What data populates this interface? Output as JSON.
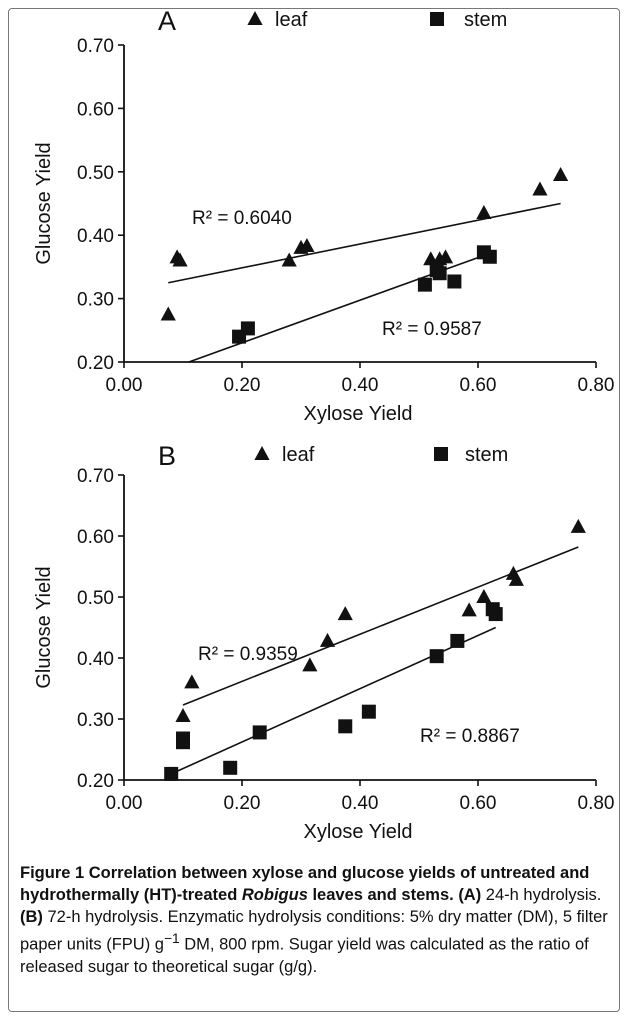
{
  "charts": [
    {
      "panel": "A",
      "chart_data": {
        "type": "scatter",
        "xlabel": "Xylose Yield",
        "ylabel": "Glucose Yield",
        "xlim": [
          0.0,
          0.8
        ],
        "ylim": [
          0.2,
          0.7
        ],
        "xticks": [
          "0.00",
          "0.20",
          "0.40",
          "0.60",
          "0.80"
        ],
        "yticks": [
          "0.20",
          "0.30",
          "0.40",
          "0.50",
          "0.60",
          "0.70"
        ],
        "grid": false,
        "legend_position": "top",
        "series": [
          {
            "name": "leaf",
            "marker": "triangle",
            "color": "#111111",
            "points": [
              [
                0.075,
                0.275
              ],
              [
                0.09,
                0.365
              ],
              [
                0.095,
                0.36
              ],
              [
                0.28,
                0.36
              ],
              [
                0.3,
                0.38
              ],
              [
                0.31,
                0.383
              ],
              [
                0.52,
                0.362
              ],
              [
                0.535,
                0.362
              ],
              [
                0.545,
                0.365
              ],
              [
                0.61,
                0.435
              ],
              [
                0.705,
                0.472
              ],
              [
                0.74,
                0.495
              ]
            ],
            "fit": {
              "x": [
                0.075,
                0.74
              ],
              "y": [
                0.325,
                0.45
              ],
              "r2_label": "R² = 0.6040"
            }
          },
          {
            "name": "stem",
            "marker": "square",
            "color": "#111111",
            "points": [
              [
                0.195,
                0.24
              ],
              [
                0.21,
                0.253
              ],
              [
                0.51,
                0.322
              ],
              [
                0.53,
                0.345
              ],
              [
                0.535,
                0.34
              ],
              [
                0.56,
                0.327
              ],
              [
                0.61,
                0.373
              ],
              [
                0.62,
                0.366
              ]
            ],
            "fit": {
              "x": [
                0.11,
                0.61
              ],
              "y": [
                0.2,
                0.368
              ],
              "r2_label": "R² = 0.9587"
            }
          }
        ]
      }
    },
    {
      "panel": "B",
      "chart_data": {
        "type": "scatter",
        "xlabel": "Xylose Yield",
        "ylabel": "Glucose Yield",
        "xlim": [
          0.0,
          0.8
        ],
        "ylim": [
          0.2,
          0.7
        ],
        "xticks": [
          "0.00",
          "0.20",
          "0.40",
          "0.60",
          "0.80"
        ],
        "yticks": [
          "0.20",
          "0.30",
          "0.40",
          "0.50",
          "0.60",
          "0.70"
        ],
        "grid": false,
        "legend_position": "top",
        "series": [
          {
            "name": "leaf",
            "marker": "triangle",
            "color": "#111111",
            "points": [
              [
                0.1,
                0.305
              ],
              [
                0.115,
                0.36
              ],
              [
                0.315,
                0.388
              ],
              [
                0.345,
                0.428
              ],
              [
                0.375,
                0.472
              ],
              [
                0.585,
                0.478
              ],
              [
                0.61,
                0.5
              ],
              [
                0.66,
                0.538
              ],
              [
                0.665,
                0.528
              ],
              [
                0.77,
                0.615
              ]
            ],
            "fit": {
              "x": [
                0.1,
                0.77
              ],
              "y": [
                0.323,
                0.582
              ],
              "r2_label": "R² = 0.9359"
            }
          },
          {
            "name": "stem",
            "marker": "square",
            "color": "#111111",
            "points": [
              [
                0.08,
                0.21
              ],
              [
                0.1,
                0.268
              ],
              [
                0.1,
                0.262
              ],
              [
                0.18,
                0.22
              ],
              [
                0.23,
                0.278
              ],
              [
                0.375,
                0.288
              ],
              [
                0.415,
                0.312
              ],
              [
                0.53,
                0.403
              ],
              [
                0.565,
                0.428
              ],
              [
                0.625,
                0.48
              ],
              [
                0.63,
                0.472
              ]
            ],
            "fit": {
              "x": [
                0.08,
                0.63
              ],
              "y": [
                0.21,
                0.45
              ],
              "r2_label": "R² = 0.8867"
            }
          }
        ]
      }
    }
  ],
  "caption": {
    "title": "Figure 1 Correlation between xylose and glucose yields of untreated and hydrothermally (HT)-treated ",
    "title_italic": "Robigus",
    "title_end": " leaves and stems.",
    "a_label": "(A)",
    "a_text": " 24-h hydrolysis. ",
    "b_label": "(B)",
    "b_text": " 72-h hydrolysis. Enzymatic hydrolysis conditions: 5% dry matter (DM), 5 filter paper units (FPU) g",
    "b_sup": "−1",
    "b_text_end": " DM, 800 rpm. Sugar yield was calculated as the ratio of released sugar to theoretical sugar (g/g)."
  }
}
